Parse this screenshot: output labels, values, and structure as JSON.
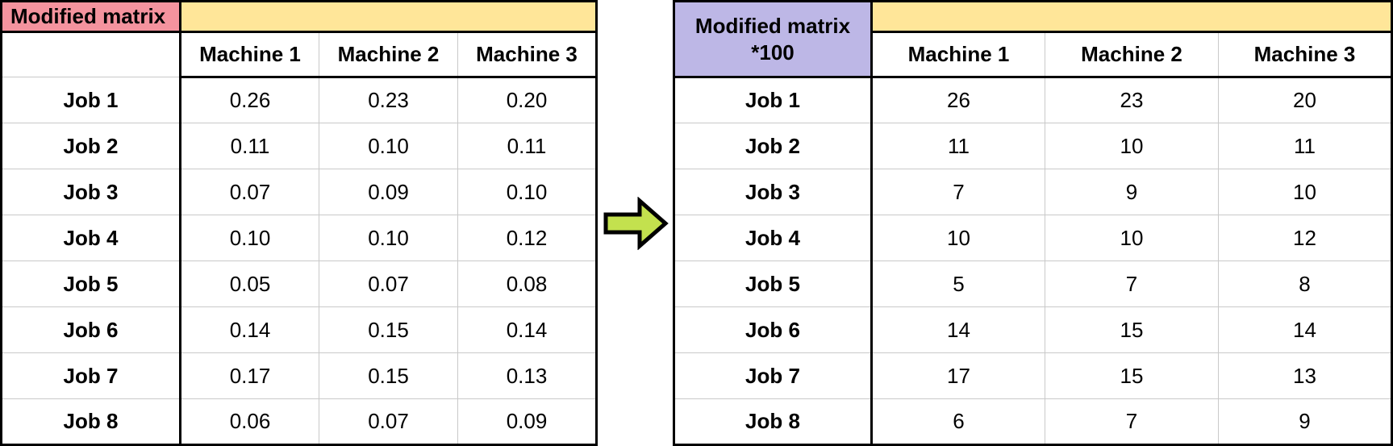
{
  "left_table": {
    "title": "Modified matrix",
    "columns": [
      "Machine 1",
      "Machine 2",
      "Machine 3"
    ],
    "row_labels": [
      "Job 1",
      "Job 2",
      "Job 3",
      "Job 4",
      "Job 5",
      "Job 6",
      "Job 7",
      "Job 8"
    ],
    "values": [
      [
        "0.26",
        "0.23",
        "0.20"
      ],
      [
        "0.11",
        "0.10",
        "0.11"
      ],
      [
        "0.07",
        "0.09",
        "0.10"
      ],
      [
        "0.10",
        "0.10",
        "0.12"
      ],
      [
        "0.05",
        "0.07",
        "0.08"
      ],
      [
        "0.14",
        "0.15",
        "0.14"
      ],
      [
        "0.17",
        "0.15",
        "0.13"
      ],
      [
        "0.06",
        "0.07",
        "0.09"
      ]
    ]
  },
  "right_table": {
    "title_line1": "Modified matrix",
    "title_line2": "*100",
    "columns": [
      "Machine 1",
      "Machine 2",
      "Machine 3"
    ],
    "row_labels": [
      "Job 1",
      "Job 2",
      "Job 3",
      "Job 4",
      "Job 5",
      "Job 6",
      "Job 7",
      "Job 8"
    ],
    "values": [
      [
        "26",
        "23",
        "20"
      ],
      [
        "11",
        "10",
        "11"
      ],
      [
        "7",
        "9",
        "10"
      ],
      [
        "10",
        "10",
        "12"
      ],
      [
        "5",
        "7",
        "8"
      ],
      [
        "14",
        "15",
        "14"
      ],
      [
        "17",
        "15",
        "13"
      ],
      [
        "6",
        "7",
        "9"
      ]
    ]
  },
  "arrow": {
    "name": "right-arrow",
    "fill": "#C3E14E",
    "outline": "#000000"
  },
  "colors": {
    "left_title_bg": "#F4939E",
    "right_title_bg": "#BDB7E6",
    "band_bg": "#FFE699",
    "grid_line": "#C9C9C9",
    "border": "#000000"
  },
  "chart_data": [
    {
      "type": "table",
      "title": "Modified matrix",
      "columns": [
        "",
        "Machine 1",
        "Machine 2",
        "Machine 3"
      ],
      "rows": [
        [
          "Job 1",
          0.26,
          0.23,
          0.2
        ],
        [
          "Job 2",
          0.11,
          0.1,
          0.11
        ],
        [
          "Job 3",
          0.07,
          0.09,
          0.1
        ],
        [
          "Job 4",
          0.1,
          0.1,
          0.12
        ],
        [
          "Job 5",
          0.05,
          0.07,
          0.08
        ],
        [
          "Job 6",
          0.14,
          0.15,
          0.14
        ],
        [
          "Job 7",
          0.17,
          0.15,
          0.13
        ],
        [
          "Job 8",
          0.06,
          0.07,
          0.09
        ]
      ]
    },
    {
      "type": "table",
      "title": "Modified matrix *100",
      "columns": [
        "",
        "Machine 1",
        "Machine 2",
        "Machine 3"
      ],
      "rows": [
        [
          "Job 1",
          26,
          23,
          20
        ],
        [
          "Job 2",
          11,
          10,
          11
        ],
        [
          "Job 3",
          7,
          9,
          10
        ],
        [
          "Job 4",
          10,
          10,
          12
        ],
        [
          "Job 5",
          5,
          7,
          8
        ],
        [
          "Job 6",
          14,
          15,
          14
        ],
        [
          "Job 7",
          17,
          15,
          13
        ],
        [
          "Job 8",
          6,
          7,
          9
        ]
      ]
    }
  ]
}
